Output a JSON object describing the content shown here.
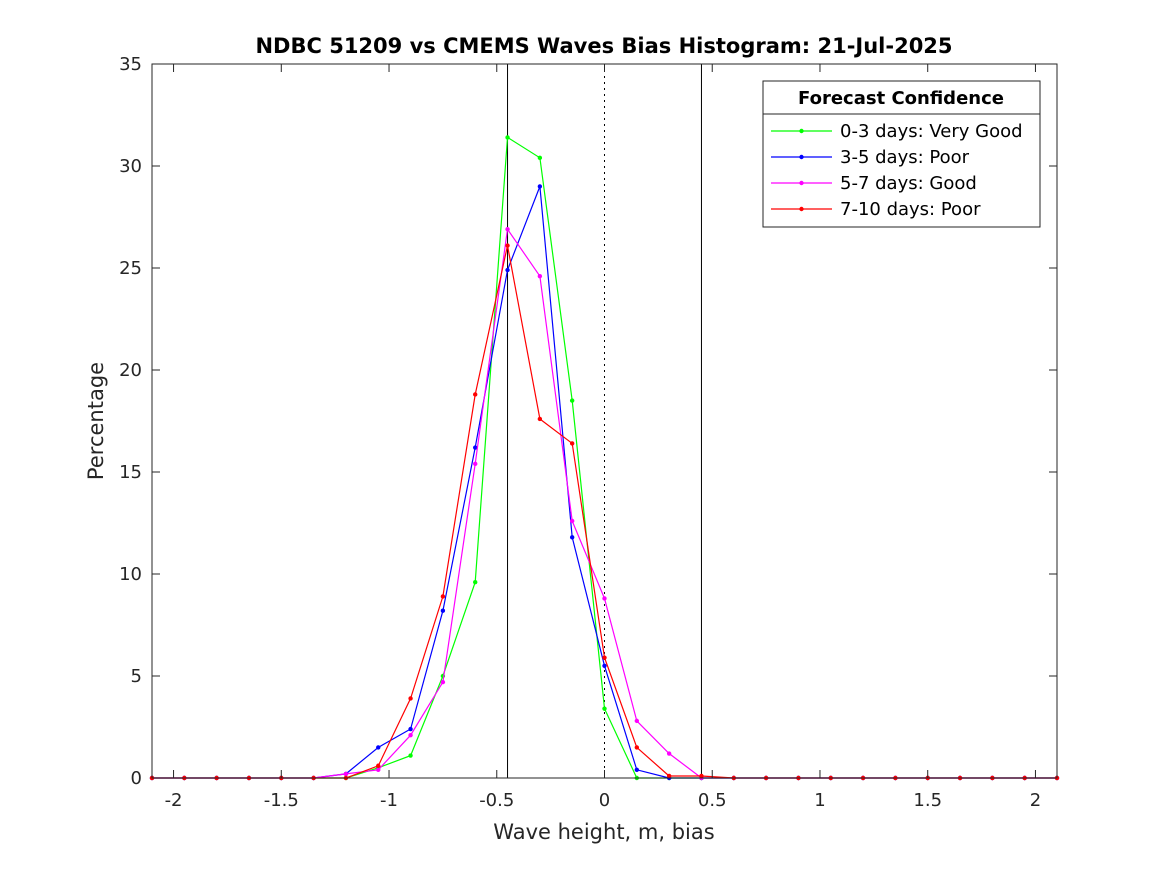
{
  "chart_data": {
    "type": "line",
    "title": "NDBC 51209 vs CMEMS Waves Bias Histogram: 21-Jul-2025",
    "xlabel": "Wave height, m, bias",
    "ylabel": "Percentage",
    "xlim": [
      -2.1,
      2.1
    ],
    "ylim": [
      0,
      35
    ],
    "xticks": [
      -2,
      -1.5,
      -1,
      -0.5,
      0,
      0.5,
      1,
      1.5,
      2
    ],
    "xtick_labels": [
      "-2",
      "-1.5",
      "-1",
      "-0.5",
      "0",
      "0.5",
      "1",
      "1.5",
      "2"
    ],
    "yticks": [
      0,
      5,
      10,
      15,
      20,
      25,
      30,
      35
    ],
    "ytick_labels": [
      "0",
      "5",
      "10",
      "15",
      "20",
      "25",
      "30",
      "35"
    ],
    "grid": false,
    "vertical_lines": [
      {
        "x": -0.45,
        "style": "solid",
        "color": "#000000"
      },
      {
        "x": 0,
        "style": "dotted",
        "color": "#000000"
      },
      {
        "x": 0.45,
        "style": "solid",
        "color": "#000000"
      }
    ],
    "x": [
      -2.1,
      -1.95,
      -1.8,
      -1.65,
      -1.5,
      -1.35,
      -1.2,
      -1.05,
      -0.9,
      -0.75,
      -0.6,
      -0.45,
      -0.3,
      -0.15,
      0,
      0.15,
      0.3,
      0.45,
      0.6,
      0.75,
      0.9,
      1.05,
      1.2,
      1.35,
      1.5,
      1.65,
      1.8,
      1.95,
      2.1
    ],
    "legend": {
      "title": "Forecast Confidence",
      "position": "top-right"
    },
    "series": [
      {
        "name": "0-3 days: Very Good",
        "color": "#00ff00",
        "values": [
          0,
          0,
          0,
          0,
          0,
          0,
          0,
          0.5,
          1.1,
          5.0,
          9.6,
          31.4,
          30.4,
          18.5,
          3.4,
          0,
          0,
          0,
          0,
          0,
          0,
          0,
          0,
          0,
          0,
          0,
          0,
          0,
          0
        ]
      },
      {
        "name": "3-5 days: Poor",
        "color": "#0000ff",
        "values": [
          0,
          0,
          0,
          0,
          0,
          0,
          0.2,
          1.5,
          2.4,
          8.2,
          16.2,
          24.9,
          29.0,
          11.8,
          5.5,
          0.4,
          0,
          0,
          0,
          0,
          0,
          0,
          0,
          0,
          0,
          0,
          0,
          0,
          0
        ]
      },
      {
        "name": "5-7 days: Good",
        "color": "#ff00ff",
        "values": [
          0,
          0,
          0,
          0,
          0,
          0,
          0.2,
          0.4,
          2.1,
          4.7,
          15.4,
          26.9,
          24.6,
          12.6,
          8.8,
          2.8,
          1.2,
          0,
          0,
          0,
          0,
          0,
          0,
          0,
          0,
          0,
          0,
          0,
          0
        ]
      },
      {
        "name": "7-10 days: Poor",
        "color": "#ff0000",
        "values": [
          0,
          0,
          0,
          0,
          0,
          0,
          0,
          0.6,
          3.9,
          8.9,
          18.8,
          26.1,
          17.6,
          16.4,
          5.9,
          1.5,
          0.1,
          0.1,
          0,
          0,
          0,
          0,
          0,
          0,
          0,
          0,
          0,
          0,
          0
        ]
      }
    ]
  }
}
